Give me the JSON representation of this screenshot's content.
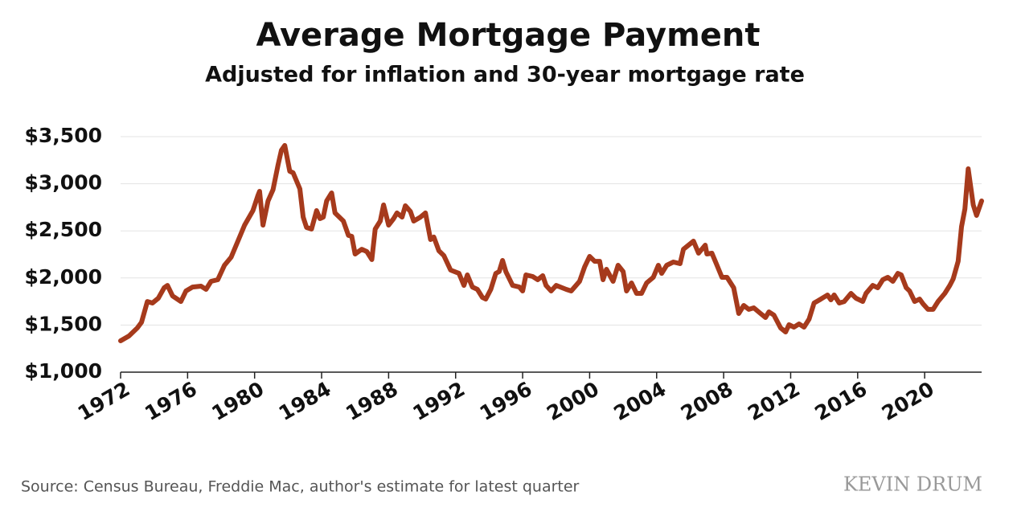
{
  "chart_data": {
    "type": "line",
    "title": "Average Mortgage Payment",
    "subtitle": "Adjusted for inflation and 30-year mortgage rate",
    "source": "Source: Census Bureau, Freddie Mac, author's estimate for latest quarter",
    "watermark": "KEVIN DRUM",
    "x": [
      1972.0,
      1972.5,
      1973.0,
      1973.25,
      1973.6,
      1973.9,
      1974.25,
      1974.6,
      1974.8,
      1975.1,
      1975.6,
      1975.9,
      1976.3,
      1976.8,
      1977.1,
      1977.4,
      1977.8,
      1978.2,
      1978.6,
      1979.0,
      1979.4,
      1979.9,
      1980.2,
      1980.3,
      1980.5,
      1980.8,
      1981.1,
      1981.4,
      1981.6,
      1981.8,
      1982.1,
      1982.3,
      1982.7,
      1982.9,
      1983.1,
      1983.4,
      1983.7,
      1983.9,
      1984.1,
      1984.3,
      1984.6,
      1984.8,
      1985.3,
      1985.6,
      1985.8,
      1986.0,
      1986.4,
      1986.7,
      1987.0,
      1987.2,
      1987.5,
      1987.7,
      1988.0,
      1988.3,
      1988.5,
      1988.8,
      1989.0,
      1989.3,
      1989.5,
      1989.9,
      1990.2,
      1990.5,
      1990.7,
      1991.0,
      1991.3,
      1991.7,
      1992.2,
      1992.5,
      1992.7,
      1993.0,
      1993.3,
      1993.6,
      1993.8,
      1994.1,
      1994.4,
      1994.6,
      1994.8,
      1995.0,
      1995.4,
      1995.8,
      1996.0,
      1996.2,
      1996.6,
      1996.9,
      1997.2,
      1997.4,
      1997.7,
      1998.0,
      1998.6,
      1998.9,
      1999.4,
      1999.7,
      2000.0,
      2000.3,
      2000.6,
      2000.8,
      2001.0,
      2001.4,
      2001.7,
      2002.0,
      2002.2,
      2002.5,
      2002.8,
      2003.1,
      2003.4,
      2003.8,
      2004.1,
      2004.3,
      2004.6,
      2005.0,
      2005.4,
      2005.6,
      2005.9,
      2006.2,
      2006.5,
      2006.9,
      2007.0,
      2007.3,
      2007.6,
      2007.9,
      2008.2,
      2008.6,
      2008.9,
      2009.2,
      2009.5,
      2009.8,
      2010.2,
      2010.5,
      2010.7,
      2011.0,
      2011.4,
      2011.7,
      2011.9,
      2012.2,
      2012.5,
      2012.8,
      2013.1,
      2013.4,
      2013.8,
      2014.2,
      2014.4,
      2014.6,
      2014.9,
      2015.2,
      2015.6,
      2015.9,
      2016.3,
      2016.5,
      2016.9,
      2017.2,
      2017.5,
      2017.8,
      2018.1,
      2018.4,
      2018.6,
      2018.9,
      2019.1,
      2019.4,
      2019.7,
      2019.9,
      2020.2,
      2020.5,
      2020.8,
      2021.2,
      2021.5,
      2021.7,
      2022.0,
      2022.2,
      2022.4,
      2022.6,
      2022.9,
      2023.1,
      2023.2,
      2023.4
    ],
    "series": [
      {
        "name": "Average mortgage payment",
        "color": "#a63a1c",
        "values": [
          1333,
          1384,
          1469,
          1529,
          1750,
          1734,
          1785,
          1896,
          1921,
          1810,
          1750,
          1862,
          1904,
          1913,
          1879,
          1964,
          1981,
          2135,
          2220,
          2391,
          2561,
          2715,
          2877,
          2920,
          2561,
          2817,
          2937,
          3201,
          3355,
          3406,
          3133,
          3116,
          2945,
          2646,
          2536,
          2519,
          2715,
          2630,
          2646,
          2817,
          2903,
          2690,
          2604,
          2451,
          2442,
          2254,
          2305,
          2280,
          2195,
          2519,
          2604,
          2775,
          2561,
          2630,
          2690,
          2646,
          2766,
          2706,
          2604,
          2646,
          2690,
          2408,
          2434,
          2288,
          2237,
          2084,
          2049,
          1921,
          2032,
          1904,
          1879,
          1793,
          1776,
          1879,
          2049,
          2067,
          2186,
          2067,
          1921,
          1904,
          1862,
          2032,
          2015,
          1981,
          2024,
          1921,
          1862,
          1921,
          1879,
          1862,
          1964,
          2118,
          2229,
          2177,
          2177,
          1981,
          2092,
          1964,
          2135,
          2067,
          1862,
          1947,
          1836,
          1836,
          1947,
          2007,
          2135,
          2049,
          2135,
          2169,
          2152,
          2305,
          2348,
          2391,
          2263,
          2348,
          2254,
          2263,
          2135,
          2007,
          2007,
          1896,
          1623,
          1708,
          1666,
          1683,
          1623,
          1580,
          1640,
          1606,
          1469,
          1427,
          1503,
          1478,
          1512,
          1478,
          1563,
          1734,
          1776,
          1819,
          1768,
          1819,
          1734,
          1750,
          1836,
          1785,
          1750,
          1836,
          1921,
          1896,
          1981,
          2007,
          1964,
          2049,
          2032,
          1896,
          1862,
          1750,
          1776,
          1725,
          1666,
          1666,
          1750,
          1836,
          1921,
          1990,
          2177,
          2544,
          2732,
          3159,
          2775,
          2664,
          2715,
          2817
        ]
      }
    ],
    "xlim": [
      1972,
      2023.4
    ],
    "xticks": [
      1972,
      1976,
      1980,
      1984,
      1988,
      1992,
      1996,
      2000,
      2004,
      2008,
      2012,
      2016,
      2020
    ],
    "ylim": [
      1000,
      3500
    ],
    "yticks": [
      {
        "value": 1000,
        "label": "$1,000"
      },
      {
        "value": 1500,
        "label": "$1,500"
      },
      {
        "value": 2000,
        "label": "$2,000"
      },
      {
        "value": 2500,
        "label": "$2,500"
      },
      {
        "value": 3000,
        "label": "$3,000"
      },
      {
        "value": 3500,
        "label": "$3,500"
      }
    ],
    "grid": true
  }
}
